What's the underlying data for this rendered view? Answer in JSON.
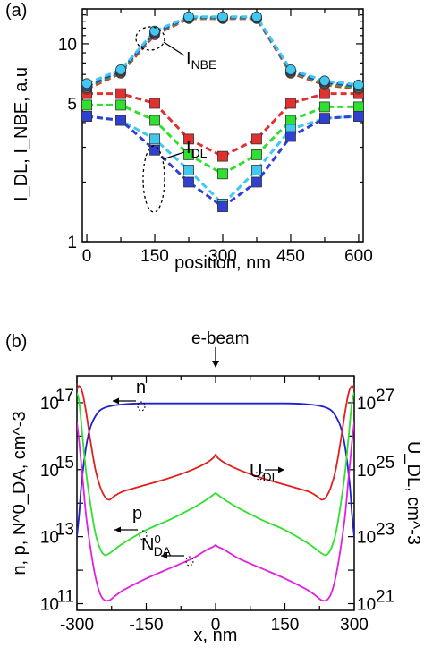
{
  "chart_data": [
    {
      "panel": "(a)",
      "type": "line",
      "ylabel": "I_DL, I_NBE,  a.u",
      "xlabel": "position, nm",
      "x": [
        0,
        75,
        150,
        225,
        300,
        375,
        450,
        525,
        600
      ],
      "xlim": [
        -10,
        610
      ],
      "ylim": [
        1,
        15
      ],
      "yscale": "log",
      "xticks": [
        "0",
        "150",
        "300",
        "450",
        "600"
      ],
      "yticks": [
        "1",
        "5",
        "10"
      ],
      "annotations": [
        {
          "text": "I",
          "sub": "NBE"
        },
        {
          "text": "I",
          "sub": "DL"
        }
      ],
      "series": [
        {
          "group": "NBE",
          "color": "#e03030",
          "values": [
            5.9,
            7.1,
            11.1,
            13.4,
            13.4,
            13.4,
            7.1,
            6.2,
            5.9
          ]
        },
        {
          "group": "NBE",
          "color": "#30b030",
          "values": [
            6.0,
            7.2,
            11.3,
            13.5,
            13.5,
            13.5,
            7.2,
            6.3,
            6.0
          ]
        },
        {
          "group": "NBE",
          "color": "#3040d0",
          "values": [
            6.1,
            7.3,
            11.4,
            13.6,
            13.6,
            13.6,
            7.3,
            6.4,
            6.1
          ]
        },
        {
          "group": "NBE",
          "color": "#40c8f0",
          "values": [
            6.3,
            7.4,
            11.6,
            13.7,
            13.7,
            13.7,
            7.4,
            6.5,
            6.2
          ]
        },
        {
          "group": "DL",
          "color": "#e03030",
          "values": [
            5.6,
            5.6,
            5.0,
            3.3,
            2.7,
            3.3,
            5.0,
            5.6,
            5.6
          ]
        },
        {
          "group": "DL",
          "color": "#30e030",
          "values": [
            4.9,
            4.9,
            4.1,
            2.75,
            2.2,
            2.75,
            4.1,
            4.8,
            4.8
          ]
        },
        {
          "group": "DL",
          "color": "#40c8f0",
          "values": [
            4.3,
            4.1,
            3.3,
            2.3,
            1.55,
            2.3,
            3.7,
            4.2,
            4.3
          ]
        },
        {
          "group": "DL",
          "color": "#3040d0",
          "values": [
            4.3,
            4.1,
            2.9,
            2.0,
            1.5,
            2.0,
            3.4,
            4.2,
            4.3
          ]
        }
      ]
    },
    {
      "panel": "(b)",
      "type": "line",
      "xlabel": "x, nm",
      "ylabel_left": "n, p, N^0_DA, cm^-3",
      "ylabel_right": "U_DL, cm^-3",
      "top_label": "e-beam",
      "xlim": [
        -300,
        300
      ],
      "xticks": [
        "-300",
        "-150",
        "0",
        "150",
        "300"
      ],
      "ylim_left_log10": [
        10.8,
        17.8
      ],
      "ylim_right_log10": [
        20.8,
        27.8
      ],
      "yticks_left": [
        "10",
        "10",
        "10",
        "10"
      ],
      "yticks_left_exp": [
        "11",
        "13",
        "15",
        "17"
      ],
      "yticks_right": [
        "10",
        "10",
        "10",
        "10"
      ],
      "yticks_right_exp": [
        "21",
        "23",
        "25",
        "27"
      ],
      "labels": [
        {
          "text": "n"
        },
        {
          "text": "p"
        },
        {
          "text": "U",
          "sub": "DL"
        },
        {
          "text": "N",
          "sup": "0",
          "sub": "DA"
        }
      ],
      "series": [
        {
          "name": "n",
          "color": "#2020d0",
          "axis": "left",
          "x": [
            -300,
            -295,
            -290,
            -280,
            -270,
            -255,
            -240,
            -220,
            -200,
            -180,
            -150,
            -100,
            0,
            100,
            150,
            180,
            200,
            220,
            240,
            255,
            270,
            280,
            290,
            295,
            300
          ],
          "log_values": [
            13.0,
            13.7,
            14.6,
            15.7,
            16.3,
            16.7,
            16.85,
            16.92,
            16.95,
            16.97,
            16.98,
            16.98,
            16.98,
            16.98,
            16.98,
            16.97,
            16.95,
            16.92,
            16.85,
            16.7,
            16.3,
            15.7,
            14.6,
            13.7,
            13.0
          ]
        },
        {
          "name": "U_DL",
          "color": "#e02020",
          "axis": "right",
          "x": [
            -300,
            -295,
            -288,
            -280,
            -270,
            -260,
            -250,
            -240,
            -230,
            -220,
            -200,
            -150,
            -100,
            -50,
            -20,
            -5,
            0,
            5,
            20,
            50,
            100,
            150,
            200,
            220,
            230,
            240,
            250,
            260,
            270,
            280,
            288,
            295,
            300
          ],
          "log_values": [
            27.4,
            27.5,
            27.3,
            26.7,
            25.8,
            25.0,
            24.5,
            24.2,
            24.1,
            24.2,
            24.35,
            24.55,
            24.75,
            25.0,
            25.2,
            25.35,
            25.45,
            25.35,
            25.2,
            25.0,
            24.75,
            24.55,
            24.35,
            24.2,
            24.1,
            24.2,
            24.5,
            25.0,
            25.8,
            26.7,
            27.3,
            27.5,
            27.4
          ]
        },
        {
          "name": "p",
          "color": "#30e030",
          "axis": "left",
          "x": [
            -300,
            -295,
            -288,
            -280,
            -270,
            -260,
            -250,
            -240,
            -230,
            -220,
            -200,
            -150,
            -100,
            -50,
            -20,
            -5,
            0,
            5,
            20,
            50,
            100,
            150,
            200,
            220,
            230,
            240,
            250,
            260,
            270,
            280,
            288,
            295,
            300
          ],
          "log_values": [
            17.3,
            17.0,
            16.0,
            14.9,
            13.9,
            13.1,
            12.65,
            12.45,
            12.5,
            12.6,
            12.8,
            13.2,
            13.5,
            13.85,
            14.1,
            14.25,
            14.3,
            14.25,
            14.1,
            13.85,
            13.5,
            13.2,
            12.8,
            12.6,
            12.5,
            12.45,
            12.65,
            13.1,
            13.9,
            14.9,
            16.0,
            17.0,
            17.3
          ]
        },
        {
          "name": "N^0_DA",
          "color": "#e020e0",
          "axis": "left",
          "x": [
            -300,
            -295,
            -288,
            -280,
            -270,
            -260,
            -250,
            -240,
            -230,
            -220,
            -200,
            -150,
            -100,
            -50,
            -20,
            -5,
            0,
            5,
            20,
            50,
            100,
            150,
            200,
            220,
            230,
            240,
            250,
            260,
            270,
            280,
            288,
            295,
            300
          ],
          "log_values": [
            16.4,
            15.8,
            14.8,
            13.6,
            12.6,
            11.8,
            11.3,
            11.1,
            11.1,
            11.2,
            11.4,
            11.75,
            12.05,
            12.35,
            12.6,
            12.7,
            12.75,
            12.7,
            12.6,
            12.35,
            12.05,
            11.75,
            11.4,
            11.2,
            11.1,
            11.1,
            11.3,
            11.8,
            12.6,
            13.6,
            14.8,
            15.8,
            16.4
          ]
        }
      ]
    }
  ]
}
